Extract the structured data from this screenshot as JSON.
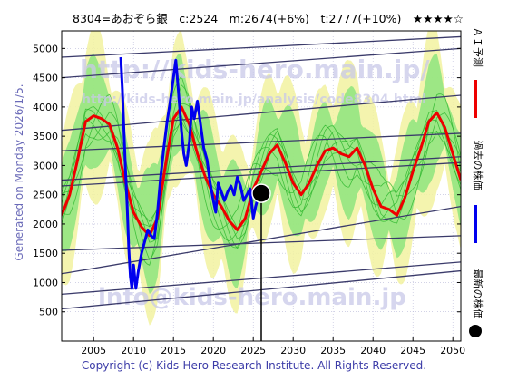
{
  "header": {
    "text": "8304=あおぞら銀　c:2524　m:2674(+6%)　t:2777(+10%)　★★★★☆"
  },
  "side_text": "Generated on Monday 2026/1/5.",
  "footer": "Copyright (c) Kids-Hero Research Institute. All Rights Reserved.",
  "watermarks": {
    "top": "http://kids-hero.main.jp/",
    "middle": "http://kids-hero.main.jp/analysis/code8304.html",
    "bottom": "info@kids-hero.main.jp"
  },
  "legend": [
    {
      "label": "ＡＩ予測",
      "color": "#ee0000"
    },
    {
      "label": "過去の株価",
      "color": "#0000ee"
    },
    {
      "label": "最新の株価",
      "color": "#000000"
    }
  ],
  "colors": {
    "ai_line": "#ee0000",
    "price_line": "#0000ee",
    "band_green": "#6ee06e",
    "band_yellow": "#f2f2a0",
    "trend_line": "#3a3a6a",
    "grid": "#b8b8d8"
  },
  "chart_data": {
    "type": "line",
    "xlabel": "",
    "ylabel": "",
    "xlim": [
      2001,
      2051
    ],
    "ylim": [
      0,
      5300
    ],
    "x_ticks": [
      2005,
      2010,
      2015,
      2020,
      2025,
      2030,
      2035,
      2040,
      2045,
      2050
    ],
    "y_ticks": [
      500,
      1000,
      1500,
      2000,
      2500,
      3000,
      3500,
      4000,
      4500,
      5000
    ],
    "grid": true,
    "current": {
      "year": 2026.0,
      "value": 2524
    },
    "series": [
      {
        "name": "ＡＩ予測",
        "color": "#ee0000",
        "points": [
          [
            2001,
            2150
          ],
          [
            2002,
            2500
          ],
          [
            2003,
            3100
          ],
          [
            2004,
            3750
          ],
          [
            2005,
            3850
          ],
          [
            2006,
            3800
          ],
          [
            2007,
            3700
          ],
          [
            2008,
            3300
          ],
          [
            2009,
            2700
          ],
          [
            2010,
            2200
          ],
          [
            2011,
            1950
          ],
          [
            2012,
            1800
          ],
          [
            2013,
            2100
          ],
          [
            2014,
            3000
          ],
          [
            2015,
            3800
          ],
          [
            2016,
            4000
          ],
          [
            2017,
            3700
          ],
          [
            2018,
            3200
          ],
          [
            2019,
            2800
          ],
          [
            2020,
            2500
          ],
          [
            2021,
            2300
          ],
          [
            2022,
            2050
          ],
          [
            2023,
            1900
          ],
          [
            2024,
            2100
          ],
          [
            2025,
            2600
          ],
          [
            2026,
            2900
          ],
          [
            2027,
            3200
          ],
          [
            2028,
            3350
          ],
          [
            2029,
            3050
          ],
          [
            2030,
            2700
          ],
          [
            2031,
            2500
          ],
          [
            2032,
            2700
          ],
          [
            2033,
            3000
          ],
          [
            2034,
            3250
          ],
          [
            2035,
            3300
          ],
          [
            2036,
            3200
          ],
          [
            2037,
            3150
          ],
          [
            2038,
            3300
          ],
          [
            2039,
            3000
          ],
          [
            2040,
            2600
          ],
          [
            2041,
            2300
          ],
          [
            2042,
            2250
          ],
          [
            2043,
            2150
          ],
          [
            2044,
            2450
          ],
          [
            2045,
            2900
          ],
          [
            2046,
            3300
          ],
          [
            2047,
            3750
          ],
          [
            2048,
            3900
          ],
          [
            2049,
            3650
          ],
          [
            2050,
            3200
          ],
          [
            2051,
            2750
          ]
        ]
      },
      {
        "name": "過去の株価",
        "color": "#0000ee",
        "points": [
          [
            2008.4,
            4850
          ],
          [
            2008.6,
            4300
          ],
          [
            2008.8,
            3600
          ],
          [
            2009.0,
            2900
          ],
          [
            2009.2,
            2300
          ],
          [
            2009.4,
            1600
          ],
          [
            2009.6,
            1100
          ],
          [
            2009.8,
            900
          ],
          [
            2010.0,
            1300
          ],
          [
            2010.3,
            900
          ],
          [
            2010.6,
            1200
          ],
          [
            2011.0,
            1500
          ],
          [
            2011.4,
            1700
          ],
          [
            2011.8,
            1900
          ],
          [
            2012.2,
            1800
          ],
          [
            2012.6,
            1750
          ],
          [
            2013.0,
            2200
          ],
          [
            2013.4,
            2800
          ],
          [
            2013.8,
            3300
          ],
          [
            2014.2,
            3750
          ],
          [
            2014.6,
            4100
          ],
          [
            2015.0,
            4500
          ],
          [
            2015.3,
            4800
          ],
          [
            2015.6,
            4300
          ],
          [
            2016.0,
            3600
          ],
          [
            2016.3,
            3200
          ],
          [
            2016.6,
            3000
          ],
          [
            2017.0,
            3400
          ],
          [
            2017.3,
            4000
          ],
          [
            2017.6,
            3800
          ],
          [
            2018.0,
            4100
          ],
          [
            2018.4,
            3700
          ],
          [
            2018.8,
            3300
          ],
          [
            2019.2,
            3100
          ],
          [
            2019.6,
            2700
          ],
          [
            2020.0,
            2400
          ],
          [
            2020.3,
            2200
          ],
          [
            2020.6,
            2700
          ],
          [
            2021.0,
            2550
          ],
          [
            2021.4,
            2400
          ],
          [
            2021.8,
            2550
          ],
          [
            2022.2,
            2650
          ],
          [
            2022.6,
            2500
          ],
          [
            2023.0,
            2800
          ],
          [
            2023.4,
            2650
          ],
          [
            2023.8,
            2400
          ],
          [
            2024.2,
            2500
          ],
          [
            2024.6,
            2600
          ],
          [
            2025.0,
            2100
          ],
          [
            2025.3,
            2300
          ],
          [
            2025.6,
            2450
          ],
          [
            2026.0,
            2524
          ]
        ]
      }
    ]
  }
}
